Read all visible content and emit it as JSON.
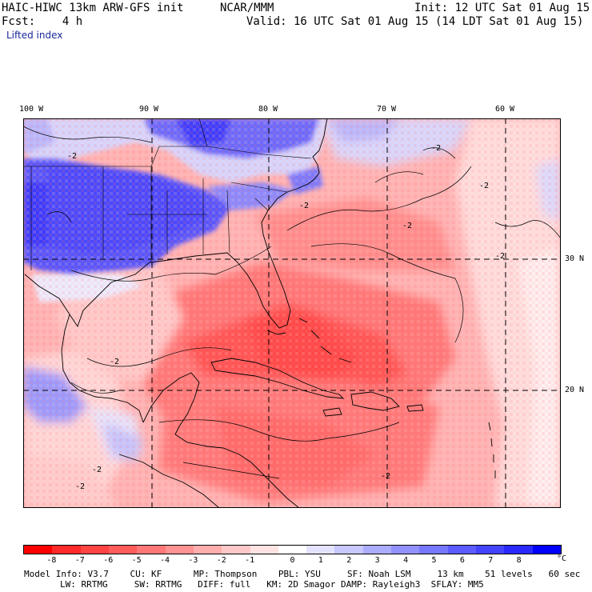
{
  "header": {
    "model_title": "HAIC-HIWC 13km ARW-GFS init",
    "agency": "NCAR/MMM",
    "init": "Init: 12 UTC Sat 01 Aug 15",
    "forecast": "Fcst:    4 h",
    "valid": "Valid: 16 UTC Sat 01 Aug 15 (14 LDT Sat 01 Aug 15)",
    "field_name": "Lifted index"
  },
  "map": {
    "longitude_labels": [
      "100 W",
      "90 W",
      "80 W",
      "70 W",
      "60 W"
    ],
    "latitude_labels": [
      "30 N",
      "20 N"
    ],
    "contour_label": "-2",
    "region": "Gulf of Mexico, Caribbean and western Atlantic"
  },
  "colorbar": {
    "ticks": [
      "-8",
      "-7",
      "-6",
      "-5",
      "-4",
      "-3",
      "-2",
      "-1",
      "0",
      "1",
      "2",
      "3",
      "4",
      "5",
      "6",
      "7",
      "8"
    ],
    "unit": "°C",
    "colors": [
      "#ff0000",
      "#ff2a2a",
      "#ff4444",
      "#ff5c5c",
      "#ff7777",
      "#ff9292",
      "#ffadad",
      "#ffc8c8",
      "#ffe3e3",
      "#ffffff",
      "#e3e3ff",
      "#c8c8ff",
      "#adadff",
      "#9292ff",
      "#7777ff",
      "#5c5cff",
      "#4444ff",
      "#2a2aff",
      "#0000ff"
    ]
  },
  "footer": {
    "line1": "Model Info: V3.7    CU: KF      MP: Thompson    PBL: YSU     SF: Noah LSM     13 km    51 levels   60 sec",
    "line2": "LW: RRTMG     SW: RRTMG   DIFF: full   KM: 2D Smagor DAMP: Rayleigh3  SFLAY: MM5"
  }
}
